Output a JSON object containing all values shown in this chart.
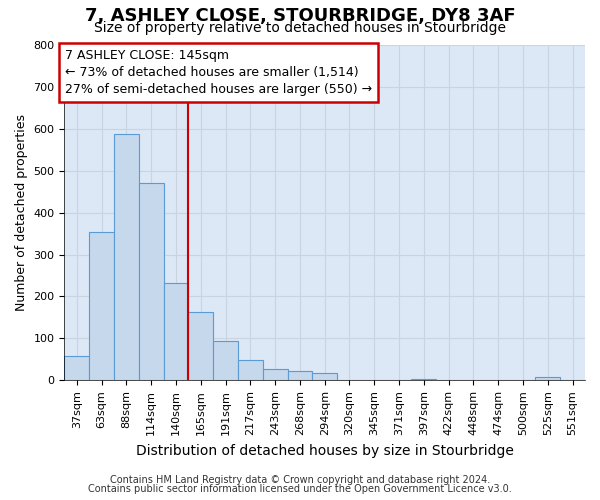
{
  "title1": "7, ASHLEY CLOSE, STOURBRIDGE, DY8 3AF",
  "title2": "Size of property relative to detached houses in Stourbridge",
  "xlabel": "Distribution of detached houses by size in Stourbridge",
  "ylabel": "Number of detached properties",
  "footnote1": "Contains HM Land Registry data © Crown copyright and database right 2024.",
  "footnote2": "Contains public sector information licensed under the Open Government Licence v3.0.",
  "annotation_title": "7 ASHLEY CLOSE: 145sqm",
  "annotation_line1": "← 73% of detached houses are smaller (1,514)",
  "annotation_line2": "27% of semi-detached houses are larger (550) →",
  "bar_labels": [
    "37sqm",
    "63sqm",
    "88sqm",
    "114sqm",
    "140sqm",
    "165sqm",
    "191sqm",
    "217sqm",
    "243sqm",
    "268sqm",
    "294sqm",
    "320sqm",
    "345sqm",
    "371sqm",
    "397sqm",
    "422sqm",
    "448sqm",
    "474sqm",
    "500sqm",
    "525sqm",
    "551sqm"
  ],
  "bar_values": [
    58,
    355,
    588,
    470,
    232,
    163,
    95,
    48,
    26,
    22,
    18,
    0,
    0,
    0,
    3,
    0,
    0,
    0,
    0,
    8,
    0
  ],
  "bar_color": "#c5d8ec",
  "bar_edge_color": "#5b9bd5",
  "vline_color": "#cc0000",
  "vline_x": 4.5,
  "ylim_max": 800,
  "yticks": [
    0,
    100,
    200,
    300,
    400,
    500,
    600,
    700,
    800
  ],
  "grid_color": "#c8d4e0",
  "bg_color": "#dce8f5",
  "fig_bg_color": "#ffffff",
  "annotation_bg": "#ffffff",
  "annotation_edge": "#cc0000",
  "title1_fontsize": 13,
  "title2_fontsize": 10,
  "ylabel_fontsize": 9,
  "xlabel_fontsize": 10,
  "tick_fontsize": 8,
  "annot_fontsize": 9,
  "footnote_fontsize": 7
}
